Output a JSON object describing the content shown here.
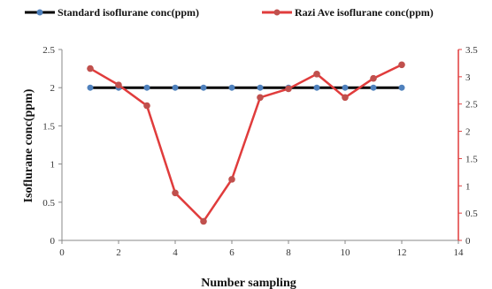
{
  "chart_data": {
    "type": "line",
    "xlabel": "Number  sampling",
    "ylabel": "Isoflurane  conc(ppm)",
    "x_ticks": [
      "0",
      "2",
      "4",
      "6",
      "8",
      "10",
      "12",
      "14"
    ],
    "y_left_ticks": [
      "0",
      "0.5",
      "1",
      "1.5",
      "2",
      "2.5"
    ],
    "y_right_ticks": [
      "0",
      "0.5",
      "1",
      "1.5",
      "2",
      "2.5",
      "3",
      "3.5"
    ],
    "xlim": [
      0,
      14
    ],
    "ylim_left": [
      0,
      2.5
    ],
    "ylim_right": [
      0,
      3.5
    ],
    "grid": false,
    "legend_position": "top",
    "series": [
      {
        "name": "Standard  isoflurane  conc(ppm)",
        "axis": "left",
        "line_color": "#000000",
        "marker_color": "#4f81bd",
        "x": [
          1,
          2,
          3,
          4,
          5,
          6,
          7,
          8,
          9,
          10,
          11,
          12
        ],
        "values": [
          2,
          2,
          2,
          2,
          2,
          2,
          2,
          2,
          2,
          2,
          2,
          2
        ]
      },
      {
        "name": "Razi Ave isoflurane conc(ppm)",
        "axis": "right",
        "line_color": "#e03c3c",
        "marker_color": "#c0504d",
        "x": [
          1,
          2,
          3,
          4,
          5,
          6,
          7,
          8,
          9,
          10,
          11,
          12
        ],
        "values": [
          3.15,
          2.85,
          2.47,
          0.87,
          0.35,
          1.12,
          2.62,
          2.78,
          3.05,
          2.62,
          2.97,
          3.22
        ]
      }
    ]
  }
}
